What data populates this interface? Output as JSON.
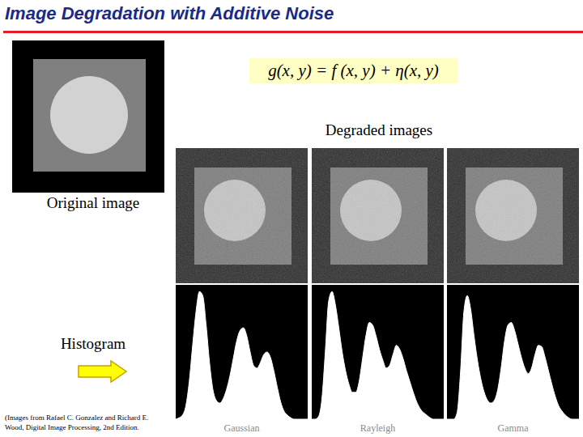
{
  "title": "Image Degradation with Additive Noise",
  "equation": "g(x, y) = f (x, y) + η(x, y)",
  "degraded_label": "Degraded images",
  "original_label": "Original image",
  "histogram_label": "Histogram",
  "credit": [
    "(Images from Rafael C. Gonzalez and Richard E.",
    "Wood, Digital Image Processing, 2nd Edition."
  ],
  "chart_data": [
    {
      "type": "area",
      "title": "Gaussian",
      "values": [
        0,
        1,
        3,
        10,
        28,
        55,
        80,
        95,
        92,
        70,
        42,
        22,
        14,
        12,
        15,
        22,
        32,
        45,
        58,
        66,
        68,
        62,
        50,
        40,
        38,
        42,
        48,
        50,
        46,
        36,
        24,
        13,
        6,
        3,
        1,
        0,
        0,
        0,
        0,
        0
      ],
      "ylim": [
        0,
        100
      ],
      "tick_labels": false,
      "color": "#ffffff"
    },
    {
      "type": "area",
      "title": "Rayleigh",
      "values": [
        0,
        0,
        2,
        15,
        50,
        88,
        95,
        85,
        68,
        50,
        36,
        26,
        20,
        20,
        28,
        45,
        62,
        72,
        70,
        62,
        52,
        44,
        38,
        40,
        48,
        55,
        52,
        45,
        36,
        28,
        20,
        13,
        8,
        5,
        3,
        1,
        0,
        0,
        0,
        0
      ],
      "ylim": [
        0,
        100
      ],
      "tick_labels": false,
      "color": "#ffffff"
    },
    {
      "type": "area",
      "title": "Gamma",
      "values": [
        0,
        0,
        0,
        5,
        35,
        80,
        92,
        82,
        62,
        44,
        30,
        20,
        14,
        12,
        14,
        22,
        38,
        58,
        70,
        72,
        66,
        56,
        46,
        38,
        34,
        38,
        48,
        55,
        54,
        46,
        36,
        26,
        17,
        10,
        6,
        3,
        1,
        0,
        0,
        0
      ],
      "ylim": [
        0,
        100
      ],
      "tick_labels": false,
      "color": "#ffffff"
    }
  ]
}
